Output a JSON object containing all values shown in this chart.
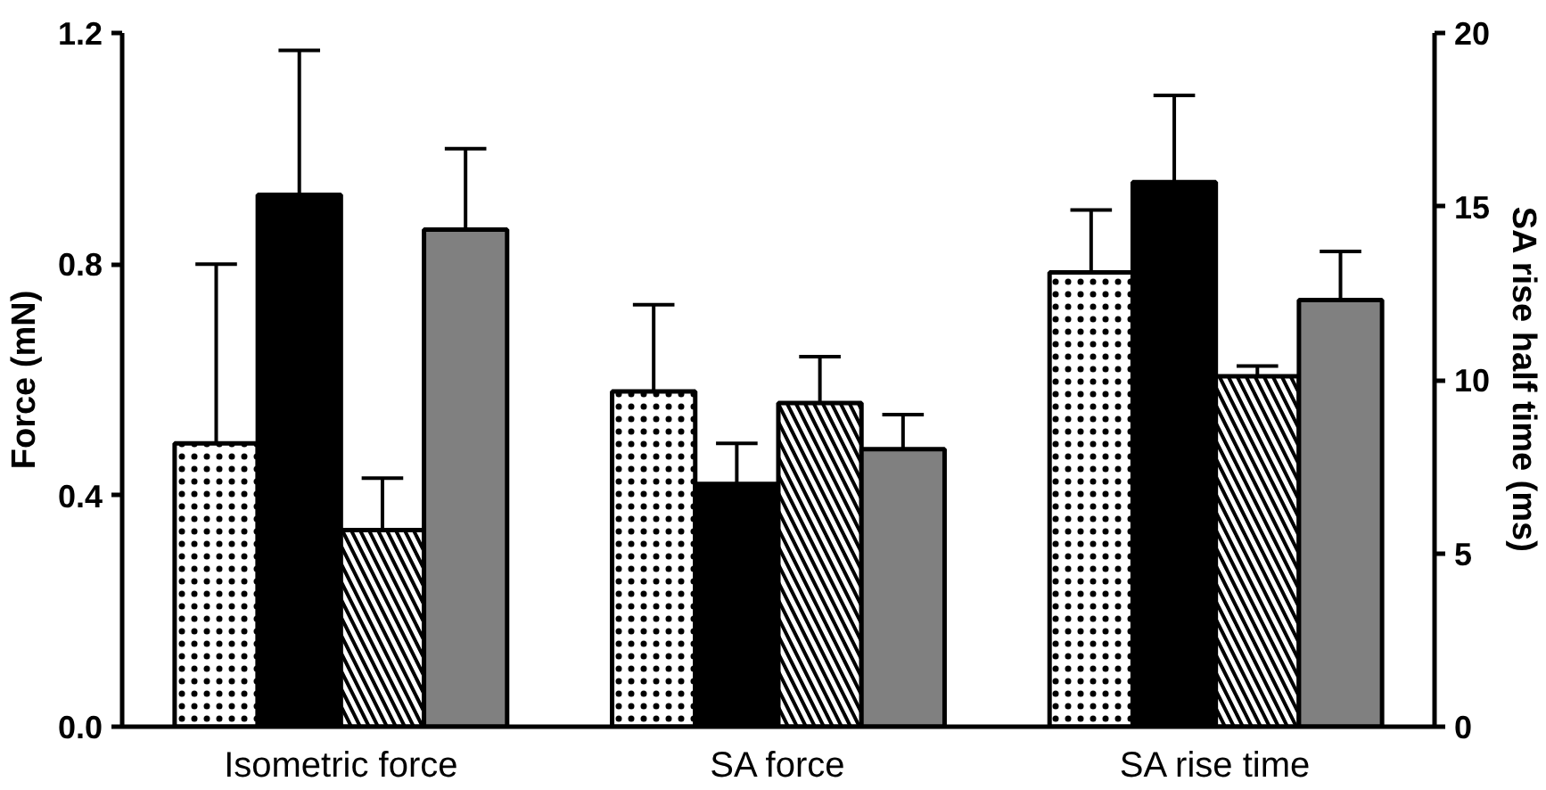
{
  "chart_data": {
    "type": "bar",
    "categories": [
      "Isometric force",
      "SA force",
      "SA rise time"
    ],
    "ylabel": "Force (mN)",
    "y2label": "SA rise half time (ms)",
    "ylim": [
      0,
      1.2
    ],
    "yticks": [
      {
        "value": 0,
        "label": "0.0"
      },
      {
        "value": 0.4,
        "label": "0.4"
      },
      {
        "value": 0.8,
        "label": "0.8"
      },
      {
        "value": 1.2,
        "label": "1.2"
      }
    ],
    "y2lim": [
      0,
      20
    ],
    "y2ticks": [
      0,
      5,
      10,
      15,
      20
    ],
    "grid": false,
    "series": [
      {
        "color": "#ffffff",
        "values": [
          0.49,
          0.58,
          null
        ],
        "errors": [
          [
            0.49,
            0.8
          ],
          [
            0.58,
            0.73
          ],
          null
        ]
      },
      {
        "color": "#000000",
        "values": [
          0.92,
          0.42,
          null
        ],
        "errors": [
          [
            0.92,
            1.17
          ],
          [
            0.42,
            0.49
          ],
          null
        ]
      },
      {
        "color": "#ffffff",
        "values": [
          0.34,
          0.56,
          null
        ],
        "errors": [
          [
            0.34,
            0.43
          ],
          [
            0.56,
            0.64
          ],
          null
        ]
      },
      {
        "color": "#808080",
        "values": [
          0.86,
          0.48,
          null
        ],
        "errors": [
          [
            0.86,
            1.0
          ],
          [
            0.48,
            0.54
          ],
          null
        ]
      },
      {
        "color": "#ffffff",
        "axis": "y2",
        "values": [
          null,
          null,
          13.1
        ],
        "errors": [
          null,
          null,
          [
            13.1,
            14.9
          ]
        ]
      },
      {
        "color": "#000000",
        "axis": "y2",
        "values": [
          null,
          null,
          15.7
        ],
        "errors": [
          null,
          null,
          [
            15.7,
            18.2
          ]
        ]
      },
      {
        "color": "#ffffff",
        "axis": "y2",
        "values": [
          null,
          null,
          10.1
        ],
        "errors": [
          null,
          null,
          [
            10.1,
            10.4
          ]
        ]
      },
      {
        "color": "#808080",
        "axis": "y2",
        "values": [
          null,
          null,
          12.3
        ],
        "errors": [
          null,
          null,
          [
            12.3,
            13.7
          ]
        ]
      }
    ]
  }
}
